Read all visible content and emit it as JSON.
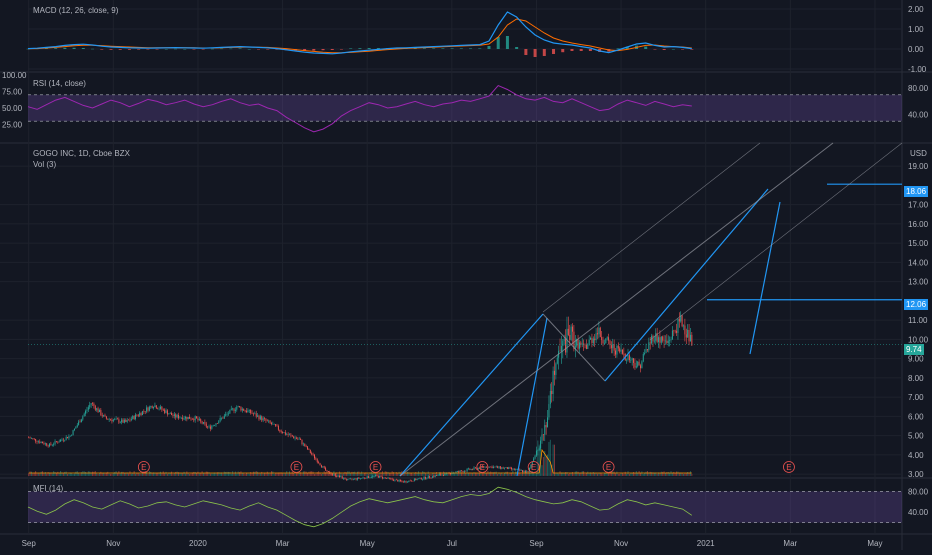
{
  "colors": {
    "bg": "#131722",
    "grid": "#1e222d",
    "separator": "#2a2e39",
    "axis_text": "#b2b5be",
    "macd_line": "#2196f3",
    "signal_line": "#ff6d00",
    "hist_up": "#26a69a",
    "hist_down": "#ef5350",
    "rsi_line": "#9c27b0",
    "rsi_band": "rgba(126,87,194,0.25)",
    "mfi_line": "#8bc34a",
    "mfi_band": "rgba(126,87,194,0.25)",
    "candle_up": "#26a69a",
    "candle_down": "#ef5350",
    "volume_ma": "#ff9800",
    "drawing": "#2196f3",
    "channel": "#9598a1",
    "price_tag_current": "#26a69a",
    "price_tag_drawing": "#2196f3",
    "earnings": "#ef5350"
  },
  "chart_data": [
    {
      "type": "line",
      "pane": "macd",
      "title": "MACD (12, 26, close, 9)",
      "y_ticks": [
        "2.00",
        "1.00",
        "0.00",
        "-1.00"
      ],
      "y_tick_values": [
        2,
        1,
        0,
        -1
      ],
      "ylim": [
        -1.05,
        2.15
      ],
      "macd": [
        0.02,
        0.04,
        0.08,
        0.12,
        0.18,
        0.22,
        0.24,
        0.2,
        0.14,
        0.1,
        0.08,
        0.06,
        0.05,
        0.04,
        0.05,
        0.06,
        0.07,
        0.06,
        0.05,
        0.04,
        0.06,
        0.08,
        0.1,
        0.12,
        0.1,
        0.08,
        0.06,
        0.02,
        -0.04,
        -0.1,
        -0.16,
        -0.2,
        -0.22,
        -0.24,
        -0.2,
        -0.14,
        -0.1,
        -0.06,
        -0.02,
        0.02,
        0.05,
        0.06,
        0.08,
        0.1,
        0.12,
        0.14,
        0.16,
        0.18,
        0.2,
        0.22,
        0.4,
        1.2,
        1.85,
        1.6,
        1.1,
        0.7,
        0.45,
        0.3,
        0.24,
        0.2,
        0.12,
        0.05,
        -0.1,
        -0.18,
        -0.05,
        0.1,
        0.25,
        0.3,
        0.18,
        0.1,
        0.12,
        0.08,
        0.02
      ],
      "signal": [
        0.01,
        0.02,
        0.05,
        0.08,
        0.12,
        0.16,
        0.19,
        0.19,
        0.17,
        0.14,
        0.12,
        0.1,
        0.08,
        0.06,
        0.06,
        0.06,
        0.06,
        0.06,
        0.06,
        0.05,
        0.05,
        0.06,
        0.08,
        0.09,
        0.1,
        0.09,
        0.08,
        0.05,
        0.02,
        -0.03,
        -0.08,
        -0.12,
        -0.16,
        -0.19,
        -0.19,
        -0.17,
        -0.14,
        -0.11,
        -0.07,
        -0.03,
        0.0,
        0.03,
        0.05,
        0.07,
        0.09,
        0.11,
        0.13,
        0.15,
        0.17,
        0.19,
        0.25,
        0.6,
        1.2,
        1.5,
        1.4,
        1.1,
        0.8,
        0.55,
        0.4,
        0.3,
        0.22,
        0.15,
        0.05,
        -0.05,
        -0.08,
        -0.02,
        0.08,
        0.18,
        0.2,
        0.15,
        0.12,
        0.1,
        0.05
      ]
    },
    {
      "type": "line",
      "pane": "rsi",
      "title": "RSI (14, close)",
      "y_ticks": [
        "100.00",
        "75.00",
        "50.00",
        "25.00"
      ],
      "y_tick_values": [
        100,
        75,
        50,
        25
      ],
      "right_ticks": [
        "80.00",
        "40.00"
      ],
      "right_tick_values": [
        80,
        40
      ],
      "ylim": [
        0,
        100
      ],
      "band": [
        30,
        70
      ],
      "values": [
        52,
        48,
        55,
        62,
        66,
        60,
        54,
        50,
        56,
        62,
        58,
        52,
        57,
        63,
        60,
        55,
        58,
        62,
        56,
        52,
        55,
        60,
        64,
        58,
        54,
        56,
        50,
        46,
        36,
        28,
        20,
        14,
        18,
        26,
        38,
        46,
        52,
        58,
        55,
        50,
        52,
        56,
        60,
        55,
        52,
        56,
        58,
        62,
        60,
        64,
        68,
        84,
        78,
        70,
        64,
        62,
        66,
        60,
        58,
        64,
        58,
        52,
        46,
        48,
        56,
        62,
        58,
        54,
        60,
        56,
        52,
        55,
        53
      ]
    },
    {
      "type": "candlestick",
      "pane": "price",
      "title": "GOGO INC, 1D, Cboe BZX",
      "subtitle": "Vol (3)",
      "currency": "USD",
      "y_ticks": [
        "19.00",
        "17.00",
        "16.00",
        "15.00",
        "14.00",
        "13.00",
        "11.00",
        "10.00",
        "9.00",
        "8.00",
        "7.00",
        "6.00",
        "5.00",
        "4.00",
        "3.00"
      ],
      "y_tick_values": [
        19,
        17,
        16,
        15,
        14,
        13,
        11,
        10,
        9,
        8,
        7,
        6,
        5,
        4,
        3
      ],
      "ylim": [
        2.8,
        20.2
      ],
      "x_ticks": [
        "Sep",
        "Nov",
        "2020",
        "Mar",
        "May",
        "Jul",
        "Sep",
        "Nov",
        "2021",
        "Mar",
        "May"
      ],
      "x_tick_bar_index": [
        0,
        61,
        122,
        183,
        244,
        305,
        366,
        427,
        488,
        549,
        610
      ],
      "bars_visible": 478,
      "closes_keypoints": [
        [
          0,
          4.9
        ],
        [
          15,
          4.5
        ],
        [
          30,
          5.0
        ],
        [
          45,
          6.7
        ],
        [
          55,
          5.9
        ],
        [
          70,
          5.7
        ],
        [
          90,
          6.6
        ],
        [
          105,
          6.0
        ],
        [
          120,
          5.9
        ],
        [
          130,
          5.4
        ],
        [
          150,
          6.5
        ],
        [
          160,
          6.2
        ],
        [
          175,
          5.6
        ],
        [
          185,
          5.1
        ],
        [
          195,
          4.8
        ],
        [
          215,
          3.1
        ],
        [
          230,
          2.7
        ],
        [
          250,
          2.9
        ],
        [
          270,
          2.6
        ],
        [
          300,
          3.0
        ],
        [
          330,
          3.4
        ],
        [
          345,
          3.3
        ],
        [
          360,
          3.1
        ],
        [
          368,
          4.6
        ],
        [
          374,
          6.0
        ],
        [
          380,
          9.0
        ],
        [
          390,
          10.2
        ],
        [
          400,
          9.5
        ],
        [
          410,
          10.4
        ],
        [
          420,
          9.6
        ],
        [
          430,
          9.2
        ],
        [
          440,
          8.6
        ],
        [
          450,
          10.2
        ],
        [
          460,
          9.8
        ],
        [
          470,
          11.0
        ],
        [
          478,
          9.8
        ]
      ],
      "current_price": "9.74",
      "current_price_value": 9.74,
      "drawing_levels": [
        "18.06",
        "12.06"
      ],
      "drawing_level_values": [
        18.06,
        12.06
      ],
      "earnings_markers": [
        "E",
        "E",
        "E",
        "E",
        "E",
        "E",
        "E"
      ],
      "earnings_bar_index": [
        83,
        193,
        250,
        327,
        364,
        418,
        548
      ]
    },
    {
      "type": "line",
      "pane": "mfi",
      "title": "MFI (14)",
      "right_ticks": [
        "80.00",
        "40.00"
      ],
      "right_tick_values": [
        80,
        40
      ],
      "ylim": [
        0,
        100
      ],
      "band": [
        20,
        80
      ],
      "values": [
        50,
        42,
        36,
        44,
        56,
        64,
        58,
        50,
        46,
        54,
        62,
        56,
        48,
        52,
        58,
        60,
        54,
        50,
        56,
        62,
        58,
        54,
        48,
        44,
        52,
        58,
        50,
        44,
        34,
        24,
        16,
        12,
        18,
        28,
        40,
        52,
        60,
        66,
        62,
        58,
        62,
        66,
        70,
        64,
        60,
        58,
        64,
        70,
        74,
        72,
        76,
        88,
        84,
        78,
        70,
        64,
        60,
        56,
        58,
        64,
        60,
        52,
        44,
        46,
        56,
        64,
        60,
        54,
        58,
        54,
        50,
        46,
        34
      ]
    }
  ]
}
